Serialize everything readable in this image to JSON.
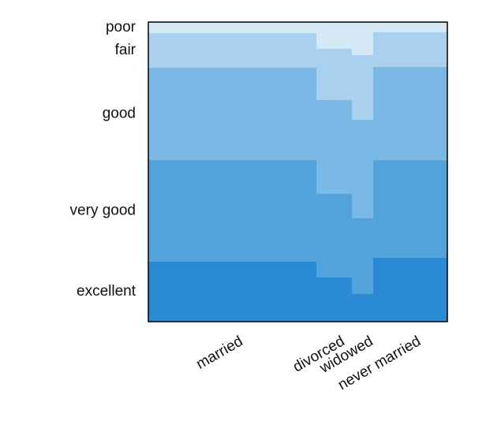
{
  "chart_data": {
    "type": "mosaic",
    "categories": [
      "married",
      "divorced",
      "widowed",
      "never married"
    ],
    "widths": [
      56.2,
      11.9,
      7.1,
      24.8
    ],
    "series": [
      {
        "name": "poor",
        "color": "#d4e8f6",
        "values": [
          3.7,
          8.9,
          11.0,
          3.4
        ]
      },
      {
        "name": "fair",
        "color": "#a9d0ee",
        "values": [
          11.6,
          17.1,
          21.6,
          11.6
        ]
      },
      {
        "name": "good",
        "color": "#7ab8e5",
        "values": [
          30.8,
          31.3,
          32.9,
          31.1
        ]
      },
      {
        "name": "very good",
        "color": "#52a2dc",
        "values": [
          33.9,
          27.9,
          25.3,
          32.6
        ]
      },
      {
        "name": "excellent",
        "color": "#2a8ad4",
        "values": [
          20.0,
          14.7,
          9.2,
          21.3
        ]
      }
    ]
  }
}
